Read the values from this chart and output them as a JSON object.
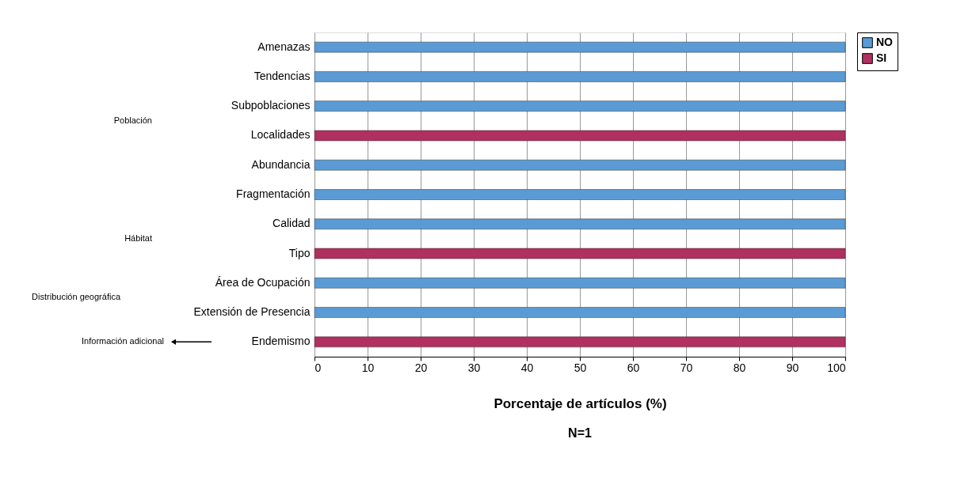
{
  "chart_data": {
    "type": "bar",
    "orientation": "horizontal",
    "stacked": true,
    "categories": [
      "Amenazas",
      "Tendencias",
      "Subpoblaciones",
      "Localidades",
      "Abundancia",
      "Fragmentación",
      "Calidad",
      "Tipo",
      "Área de Ocupación",
      "Extensión de Presencia",
      "Endemismo"
    ],
    "series": [
      {
        "name": "NO",
        "color": "#5a9bd5",
        "values": [
          100,
          100,
          100,
          null,
          100,
          100,
          100,
          null,
          100,
          100,
          null
        ]
      },
      {
        "name": "SI",
        "color": "#b03060",
        "values": [
          null,
          null,
          null,
          100,
          null,
          null,
          null,
          100,
          null,
          null,
          100
        ]
      }
    ],
    "xlim": [
      0,
      100
    ],
    "xticks": [
      0,
      10,
      20,
      30,
      40,
      50,
      60,
      70,
      80,
      90,
      100
    ],
    "xlabel": "Porcentaje de artículos (%)",
    "annotations": [
      "Población",
      "Hábitat",
      "Distribución geográfica",
      "Información adicional",
      "N=1"
    ],
    "grid": "x",
    "legend": "right"
  }
}
